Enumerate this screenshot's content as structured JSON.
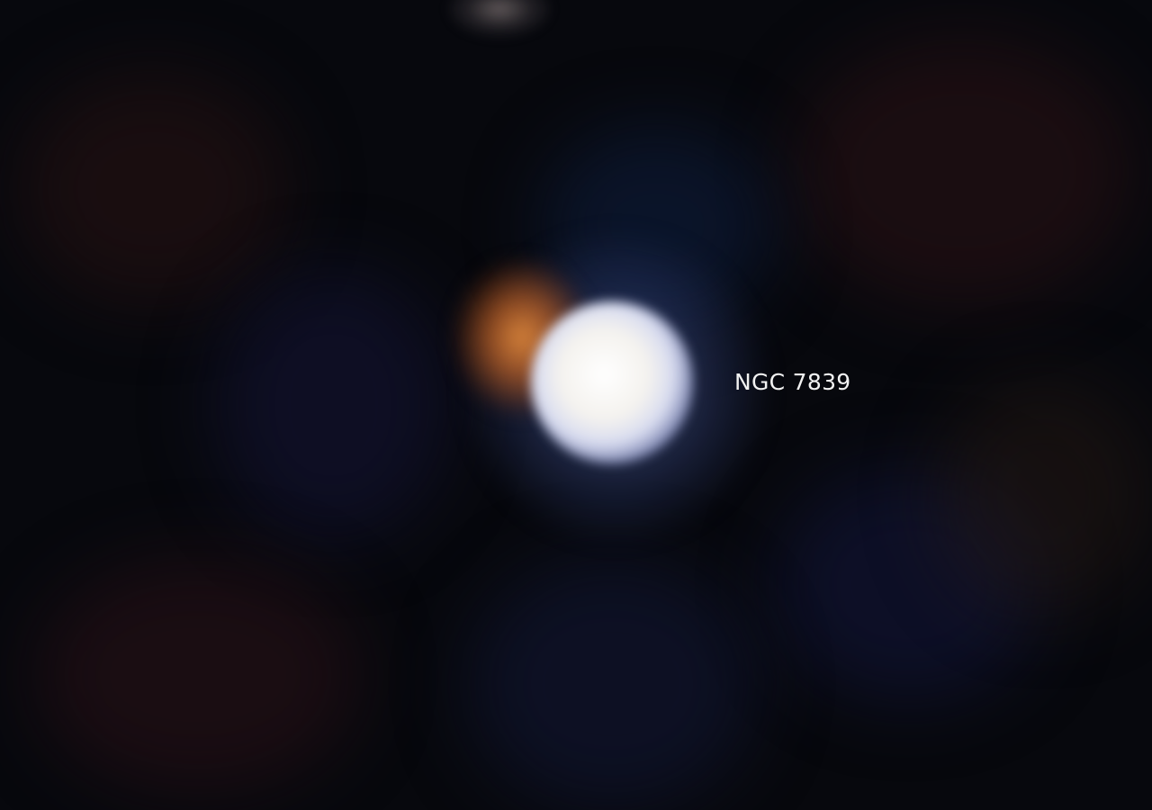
{
  "image": {
    "label": "NGC 7839"
  },
  "colors": {
    "background": "#07080d",
    "core": "#ffffff",
    "companion": "#e08c3c",
    "glow": "#7888d2",
    "label": "#f2f2f2"
  }
}
